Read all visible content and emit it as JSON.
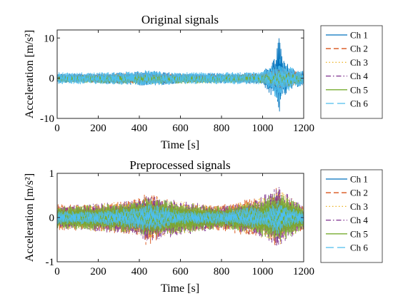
{
  "chart_data": [
    {
      "type": "line",
      "title": "Original signals",
      "xlabel": "Time [s]",
      "ylabel": "Acceleration [m/s²]",
      "xlim": [
        0,
        1200
      ],
      "ylim": [
        -10,
        12
      ],
      "xticks": [
        0,
        200,
        400,
        600,
        800,
        1000,
        1200
      ],
      "yticks": [
        -10,
        0,
        10
      ],
      "grid": false,
      "legend_position": "right-outside",
      "series": [
        {
          "name": "Ch 1",
          "color": "#0072BD",
          "dash": "solid",
          "x": [
            0,
            200,
            400,
            430,
            600,
            800,
            1000,
            1040,
            1060,
            1080,
            1100,
            1150,
            1200
          ],
          "y_max": [
            1.2,
            1.3,
            1.8,
            2.0,
            1.3,
            1.3,
            1.5,
            4.0,
            5.0,
            11.5,
            4.5,
            2.5,
            1.8
          ],
          "y_min": [
            -1.2,
            -1.3,
            -1.8,
            -2.0,
            -1.3,
            -1.3,
            -1.5,
            -4.5,
            -5.0,
            -9.0,
            -5.0,
            -2.5,
            -1.8
          ]
        },
        {
          "name": "Ch 2",
          "color": "#D95319",
          "dash": "dashed",
          "x": [
            0,
            400,
            800,
            1000,
            1080,
            1200
          ],
          "y_max": [
            0.9,
            1.3,
            0.9,
            1.2,
            3.0,
            1.2
          ],
          "y_min": [
            -0.9,
            -1.3,
            -0.9,
            -1.2,
            -3.0,
            -1.2
          ]
        },
        {
          "name": "Ch 3",
          "color": "#EDB120",
          "dash": "dotted",
          "x": [
            0,
            400,
            800,
            1000,
            1080,
            1200
          ],
          "y_max": [
            0.8,
            1.2,
            0.8,
            1.1,
            2.5,
            1.0
          ],
          "y_min": [
            -0.8,
            -1.2,
            -0.8,
            -1.1,
            -2.5,
            -1.0
          ]
        },
        {
          "name": "Ch 4",
          "color": "#7E2F8E",
          "dash": "dashdot",
          "x": [
            0,
            400,
            800,
            1000,
            1080,
            1200
          ],
          "y_max": [
            0.8,
            1.2,
            0.8,
            1.0,
            2.5,
            1.0
          ],
          "y_min": [
            -0.8,
            -1.2,
            -0.8,
            -1.0,
            -2.5,
            -1.0
          ]
        },
        {
          "name": "Ch 5",
          "color": "#77AC30",
          "dash": "solid",
          "x": [
            0,
            400,
            800,
            1000,
            1080,
            1200
          ],
          "y_max": [
            0.8,
            1.0,
            0.8,
            1.0,
            2.0,
            1.0
          ],
          "y_min": [
            -1.0,
            -1.5,
            -1.2,
            -1.3,
            -2.5,
            -1.3
          ]
        },
        {
          "name": "Ch 6",
          "color": "#4DBEEE",
          "dash": "longdash",
          "x": [
            0,
            200,
            400,
            430,
            600,
            800,
            1000,
            1050,
            1080,
            1100,
            1150,
            1200
          ],
          "y_max": [
            1.5,
            1.5,
            1.7,
            2.0,
            1.5,
            1.5,
            1.6,
            3.5,
            5.0,
            4.0,
            2.5,
            1.8
          ],
          "y_min": [
            -1.5,
            -1.5,
            -1.7,
            -2.0,
            -1.5,
            -1.5,
            -1.6,
            -4.0,
            -6.5,
            -4.0,
            -2.5,
            -1.8
          ]
        }
      ]
    },
    {
      "type": "line",
      "title": "Preprocessed signals",
      "xlabel": "Time [s]",
      "ylabel": "Acceleration [m/s²]",
      "xlim": [
        0,
        1200
      ],
      "ylim": [
        -1,
        1
      ],
      "xticks": [
        0,
        200,
        400,
        600,
        800,
        1000,
        1200
      ],
      "yticks": [
        -1,
        0,
        1
      ],
      "grid": false,
      "legend_position": "right-outside",
      "series": [
        {
          "name": "Ch 1",
          "color": "#0072BD",
          "dash": "solid",
          "x": [
            0,
            200,
            400,
            430,
            600,
            800,
            960,
            1000,
            1080,
            1100,
            1200
          ],
          "y_max": [
            0.2,
            0.2,
            0.35,
            0.45,
            0.2,
            0.2,
            0.3,
            0.2,
            0.55,
            0.3,
            0.2
          ],
          "y_min": [
            -0.2,
            -0.2,
            -0.35,
            -0.45,
            -0.2,
            -0.2,
            -0.3,
            -0.2,
            -0.6,
            -0.3,
            -0.2
          ]
        },
        {
          "name": "Ch 2",
          "color": "#D95319",
          "dash": "dashed",
          "x": [
            0,
            200,
            400,
            430,
            600,
            800,
            960,
            1000,
            1080,
            1100,
            1200
          ],
          "y_max": [
            0.3,
            0.3,
            0.45,
            0.6,
            0.3,
            0.3,
            0.45,
            0.3,
            0.75,
            0.4,
            0.3
          ],
          "y_min": [
            -0.3,
            -0.3,
            -0.45,
            -0.65,
            -0.3,
            -0.3,
            -0.45,
            -0.3,
            -0.75,
            -0.4,
            -0.3
          ]
        },
        {
          "name": "Ch 3",
          "color": "#EDB120",
          "dash": "dotted",
          "x": [
            0,
            400,
            430,
            800,
            960,
            1080,
            1200
          ],
          "y_max": [
            0.25,
            0.4,
            0.5,
            0.25,
            0.4,
            0.65,
            0.25
          ],
          "y_min": [
            -0.25,
            -0.4,
            -0.5,
            -0.25,
            -0.4,
            -0.65,
            -0.25
          ]
        },
        {
          "name": "Ch 4",
          "color": "#7E2F8E",
          "dash": "dashdot",
          "x": [
            0,
            400,
            430,
            800,
            960,
            1080,
            1200
          ],
          "y_max": [
            0.25,
            0.4,
            0.5,
            0.25,
            0.4,
            0.7,
            0.25
          ],
          "y_min": [
            -0.25,
            -0.4,
            -0.55,
            -0.25,
            -0.4,
            -0.7,
            -0.25
          ]
        },
        {
          "name": "Ch 5",
          "color": "#77AC30",
          "dash": "solid",
          "x": [
            0,
            400,
            430,
            800,
            960,
            1080,
            1200
          ],
          "y_max": [
            0.25,
            0.35,
            0.45,
            0.25,
            0.35,
            0.6,
            0.25
          ],
          "y_min": [
            -0.25,
            -0.35,
            -0.45,
            -0.25,
            -0.35,
            -0.6,
            -0.25
          ]
        },
        {
          "name": "Ch 6",
          "color": "#4DBEEE",
          "dash": "longdash",
          "x": [
            0,
            200,
            400,
            430,
            600,
            800,
            960,
            1000,
            1080,
            1100,
            1200
          ],
          "y_max": [
            0.15,
            0.15,
            0.25,
            0.35,
            0.15,
            0.15,
            0.25,
            0.15,
            0.4,
            0.25,
            0.15
          ],
          "y_min": [
            -0.15,
            -0.15,
            -0.25,
            -0.35,
            -0.15,
            -0.15,
            -0.25,
            -0.15,
            -0.45,
            -0.25,
            -0.15
          ]
        }
      ]
    }
  ]
}
